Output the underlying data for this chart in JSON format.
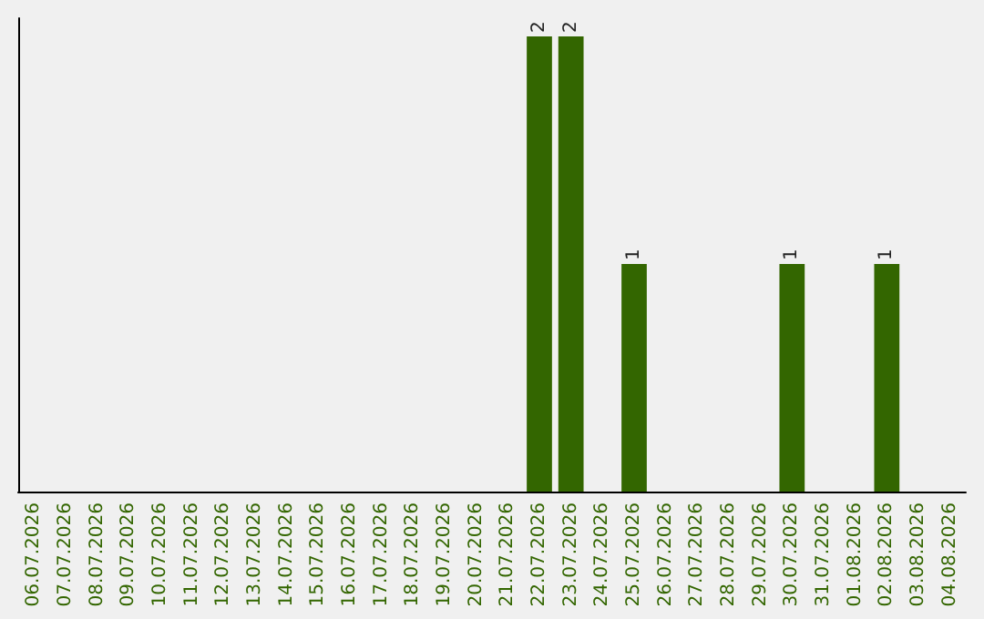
{
  "chart_data": {
    "type": "bar",
    "categories": [
      "06.07.2026",
      "07.07.2026",
      "08.07.2026",
      "09.07.2026",
      "10.07.2026",
      "11.07.2026",
      "12.07.2026",
      "13.07.2026",
      "14.07.2026",
      "15.07.2026",
      "16.07.2026",
      "17.07.2026",
      "18.07.2026",
      "19.07.2026",
      "20.07.2026",
      "21.07.2026",
      "22.07.2026",
      "23.07.2026",
      "24.07.2026",
      "25.07.2026",
      "26.07.2026",
      "27.07.2026",
      "28.07.2026",
      "29.07.2026",
      "30.07.2026",
      "31.07.2026",
      "01.08.2026",
      "02.08.2026",
      "03.08.2026",
      "04.08.2026"
    ],
    "values": [
      null,
      null,
      null,
      null,
      null,
      null,
      null,
      null,
      null,
      null,
      null,
      null,
      null,
      null,
      null,
      null,
      2,
      2,
      null,
      1,
      null,
      null,
      null,
      null,
      1,
      null,
      null,
      1,
      null,
      null
    ],
    "data_labels": true,
    "color": "#336600",
    "tick_labels": "x",
    "grid": false
  }
}
